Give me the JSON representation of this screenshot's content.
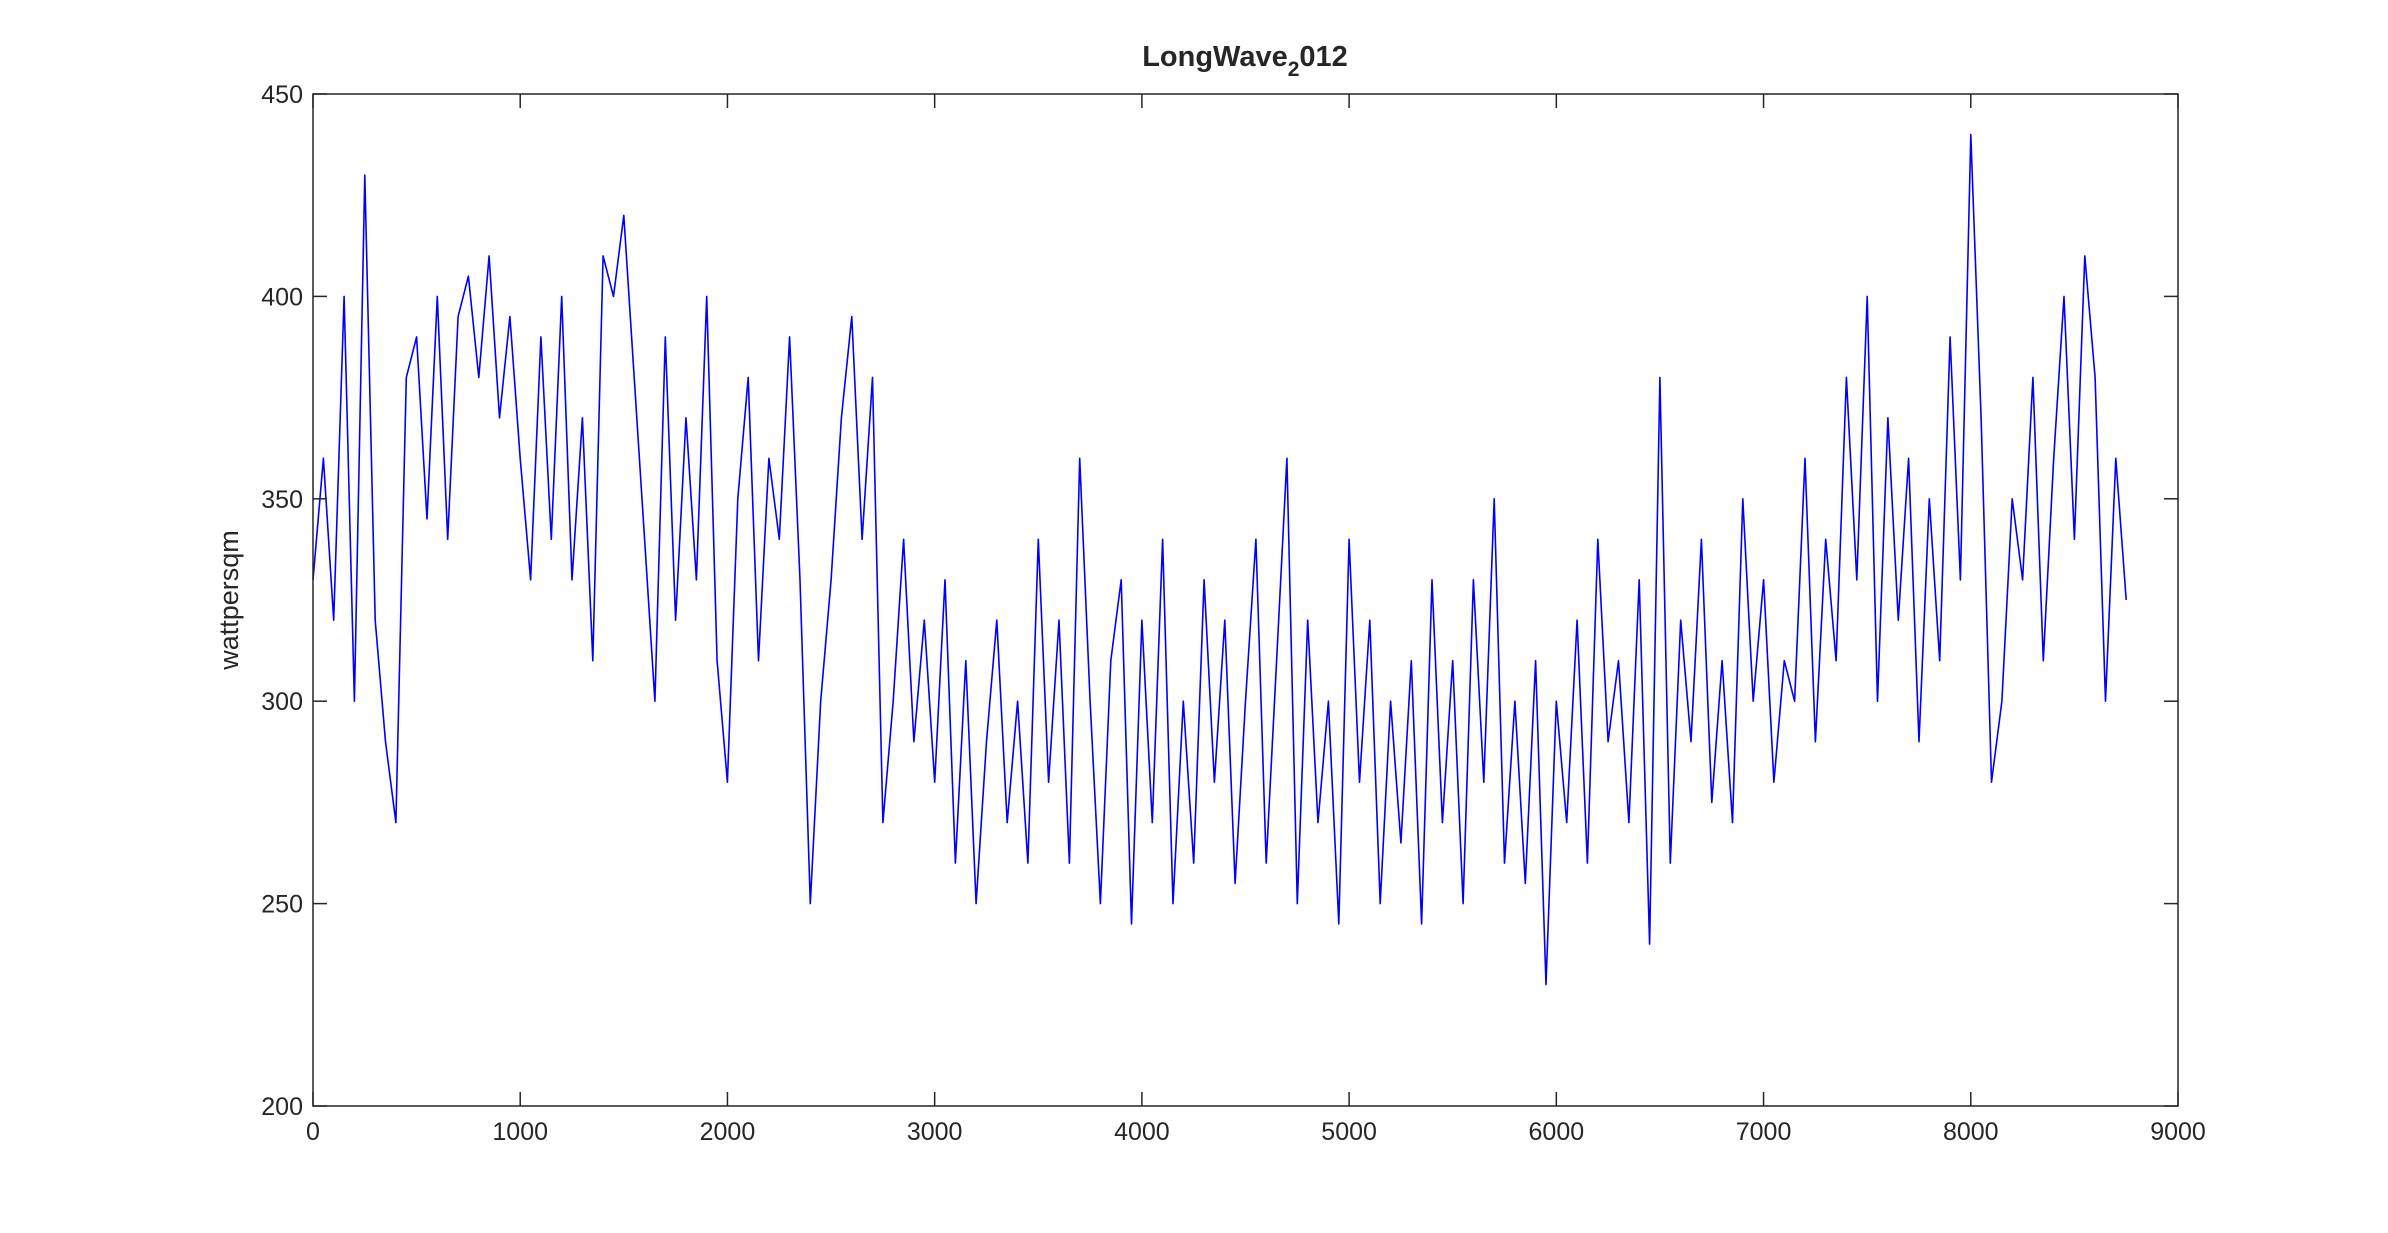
{
  "chart_data": {
    "type": "line",
    "title": {
      "main": "LongWave",
      "sub": "2",
      "rest": "012"
    },
    "ylabel": "wattpersqm",
    "color": "#0000ff",
    "xlim": [
      0,
      9000
    ],
    "xticks": [
      0,
      1000,
      2000,
      3000,
      4000,
      5000,
      6000,
      7000,
      8000,
      9000
    ],
    "ylim": [
      200,
      450
    ],
    "yticks": [
      200,
      250,
      300,
      350,
      400,
      450
    ],
    "grid": false,
    "x": [
      0,
      50,
      100,
      150,
      200,
      250,
      300,
      350,
      400,
      450,
      500,
      550,
      600,
      650,
      700,
      750,
      800,
      850,
      900,
      950,
      1000,
      1050,
      1100,
      1150,
      1200,
      1250,
      1300,
      1350,
      1400,
      1450,
      1500,
      1550,
      1600,
      1650,
      1700,
      1750,
      1800,
      1850,
      1900,
      1950,
      2000,
      2050,
      2100,
      2150,
      2200,
      2250,
      2300,
      2350,
      2400,
      2450,
      2500,
      2550,
      2600,
      2650,
      2700,
      2750,
      2800,
      2850,
      2900,
      2950,
      3000,
      3050,
      3100,
      3150,
      3200,
      3250,
      3300,
      3350,
      3400,
      3450,
      3500,
      3550,
      3600,
      3650,
      3700,
      3750,
      3800,
      3850,
      3900,
      3950,
      4000,
      4050,
      4100,
      4150,
      4200,
      4250,
      4300,
      4350,
      4400,
      4450,
      4500,
      4550,
      4600,
      4650,
      4700,
      4750,
      4800,
      4850,
      4900,
      4950,
      5000,
      5050,
      5100,
      5150,
      5200,
      5250,
      5300,
      5350,
      5400,
      5450,
      5500,
      5550,
      5600,
      5650,
      5700,
      5750,
      5800,
      5850,
      5900,
      5950,
      6000,
      6050,
      6100,
      6150,
      6200,
      6250,
      6300,
      6350,
      6400,
      6450,
      6500,
      6550,
      6600,
      6650,
      6700,
      6750,
      6800,
      6850,
      6900,
      6950,
      7000,
      7050,
      7100,
      7150,
      7200,
      7250,
      7300,
      7350,
      7400,
      7450,
      7500,
      7550,
      7600,
      7650,
      7700,
      7750,
      7800,
      7850,
      7900,
      7950,
      8000,
      8050,
      8100,
      8150,
      8200,
      8250,
      8300,
      8350,
      8400,
      8450,
      8500,
      8550,
      8600,
      8650,
      8700,
      8750
    ],
    "values": [
      330,
      360,
      320,
      400,
      300,
      430,
      320,
      290,
      270,
      380,
      390,
      345,
      400,
      340,
      395,
      405,
      380,
      410,
      370,
      395,
      360,
      330,
      390,
      340,
      400,
      330,
      370,
      310,
      410,
      400,
      420,
      380,
      340,
      300,
      390,
      320,
      370,
      330,
      400,
      310,
      280,
      350,
      380,
      310,
      360,
      340,
      390,
      330,
      250,
      300,
      330,
      370,
      395,
      340,
      380,
      270,
      300,
      340,
      290,
      320,
      280,
      330,
      260,
      310,
      250,
      290,
      320,
      270,
      300,
      260,
      340,
      280,
      320,
      260,
      360,
      300,
      250,
      310,
      330,
      245,
      320,
      270,
      340,
      250,
      300,
      260,
      330,
      280,
      320,
      255,
      300,
      340,
      260,
      310,
      360,
      250,
      320,
      270,
      300,
      245,
      340,
      280,
      320,
      250,
      300,
      265,
      310,
      245,
      330,
      270,
      310,
      250,
      330,
      280,
      350,
      260,
      300,
      255,
      310,
      230,
      300,
      270,
      320,
      260,
      340,
      290,
      310,
      270,
      330,
      240,
      380,
      260,
      320,
      290,
      340,
      275,
      310,
      270,
      350,
      300,
      330,
      280,
      310,
      300,
      360,
      290,
      340,
      310,
      380,
      330,
      400,
      300,
      370,
      320,
      360,
      290,
      350,
      310,
      390,
      330,
      440,
      370,
      280,
      300,
      350,
      330,
      380,
      310,
      360,
      400,
      340,
      410,
      380,
      300,
      360,
      325
    ]
  }
}
